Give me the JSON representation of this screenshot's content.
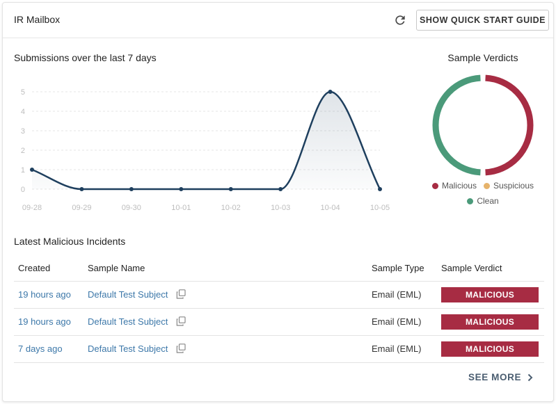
{
  "header": {
    "title": "IR Mailbox",
    "quick_start_label": "SHOW QUICK START GUIDE",
    "refresh_icon": "refresh-icon"
  },
  "submissions": {
    "title": "Submissions over the last 7 days"
  },
  "chart_data": [
    {
      "type": "area",
      "title": "Submissions over the last 7 days",
      "x": [
        "09-28",
        "09-29",
        "09-30",
        "10-01",
        "10-02",
        "10-03",
        "10-04",
        "10-05"
      ],
      "series": [
        {
          "values": [
            1,
            0,
            0,
            0,
            0,
            0,
            5,
            0
          ]
        }
      ],
      "ylim": [
        0,
        5
      ],
      "yticks": [
        0,
        1,
        2,
        3,
        4,
        5
      ],
      "grid": true,
      "color": "#1e3f5e"
    },
    {
      "type": "pie",
      "title": "Sample Verdicts",
      "categories": [
        "Malicious",
        "Suspicious",
        "Clean"
      ],
      "values": [
        50,
        0,
        50
      ],
      "colors": [
        "#a72c43",
        "#e6b36b",
        "#4b9a7a"
      ],
      "legend": "bottom"
    }
  ],
  "verdicts": {
    "title": "Sample Verdicts",
    "legend": {
      "malicious": "Malicious",
      "suspicious": "Suspicious",
      "clean": "Clean"
    }
  },
  "incidents": {
    "title": "Latest Malicious Incidents",
    "columns": {
      "created": "Created",
      "name": "Sample Name",
      "type": "Sample Type",
      "verdict": "Sample Verdict"
    },
    "rows": [
      {
        "created": "19 hours ago",
        "name": "Default Test Subject",
        "type": "Email (EML)",
        "verdict": "MALICIOUS"
      },
      {
        "created": "19 hours ago",
        "name": "Default Test Subject",
        "type": "Email (EML)",
        "verdict": "MALICIOUS"
      },
      {
        "created": "7 days ago",
        "name": "Default Test Subject",
        "type": "Email (EML)",
        "verdict": "MALICIOUS"
      }
    ],
    "see_more": "SEE MORE"
  }
}
